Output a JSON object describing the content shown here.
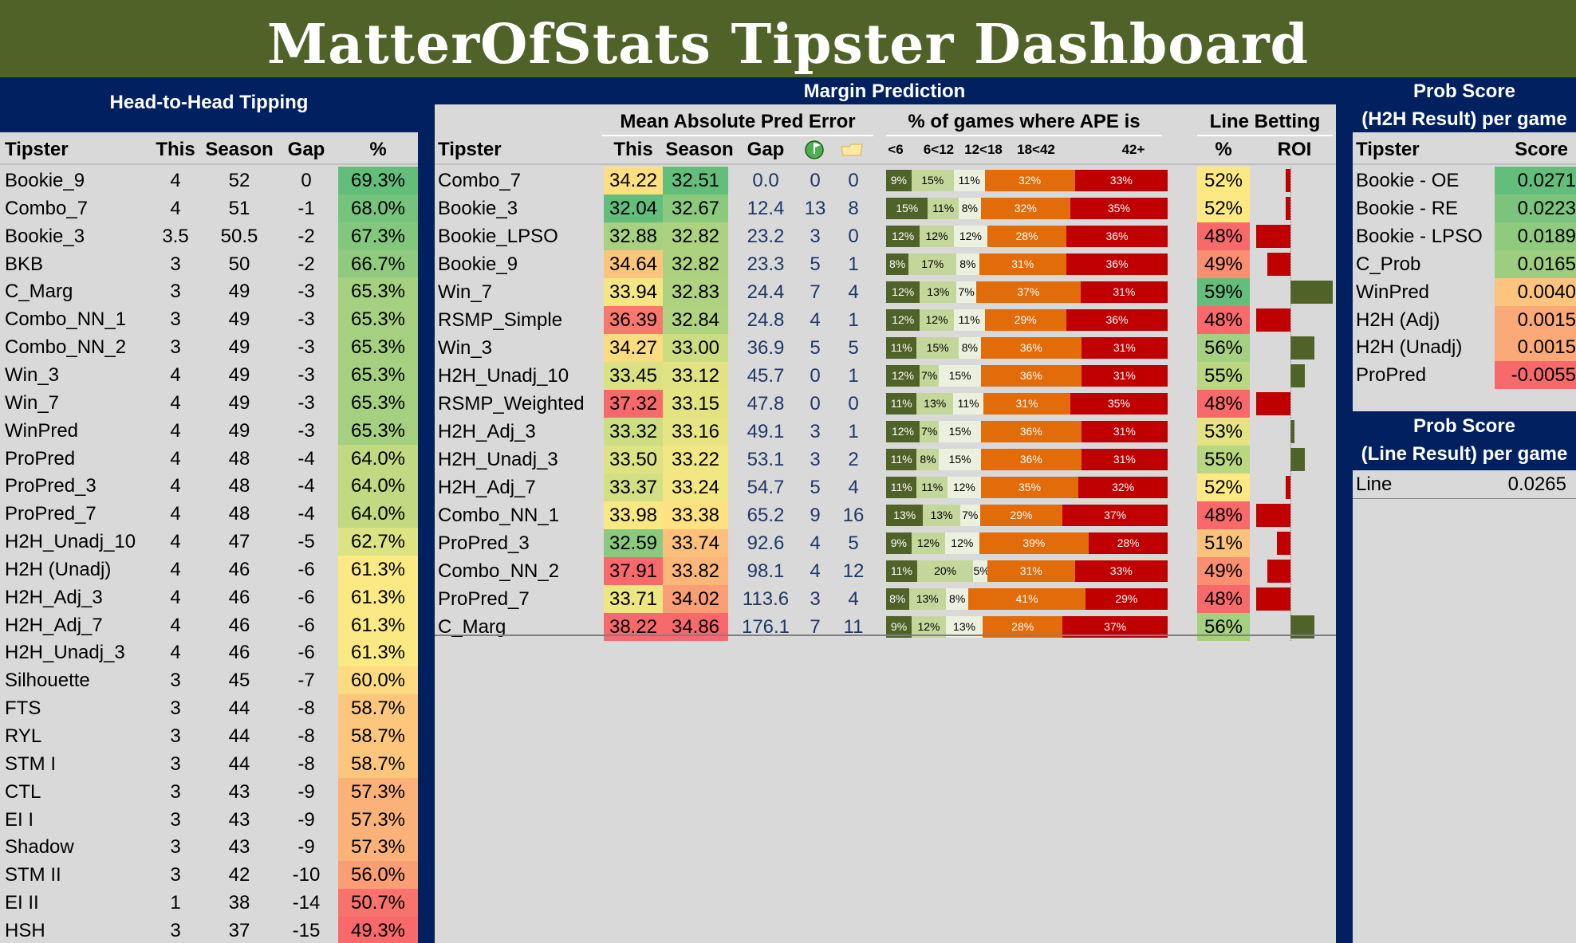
{
  "title": "MatterOfStats Tipster Dashboard",
  "h2h": {
    "section_title": "Head-to-Head Tipping",
    "columns": [
      "Tipster",
      "This",
      "Season",
      "Gap",
      "%"
    ],
    "rows": [
      {
        "tipster": "Bookie_9",
        "this": "4",
        "season": "52",
        "gap": "0",
        "pct": "69.3%",
        "color": "#63be7b"
      },
      {
        "tipster": "Combo_7",
        "this": "4",
        "season": "51",
        "gap": "-1",
        "pct": "68.0%",
        "color": "#76c37d"
      },
      {
        "tipster": "Bookie_3",
        "this": "3.5",
        "season": "50.5",
        "gap": "-2",
        "pct": "67.3%",
        "color": "#83c77d"
      },
      {
        "tipster": "BKB",
        "this": "3",
        "season": "50",
        "gap": "-2",
        "pct": "66.7%",
        "color": "#8fca7e"
      },
      {
        "tipster": "C_Marg",
        "this": "3",
        "season": "49",
        "gap": "-3",
        "pct": "65.3%",
        "color": "#a4d07f"
      },
      {
        "tipster": "Combo_NN_1",
        "this": "3",
        "season": "49",
        "gap": "-3",
        "pct": "65.3%",
        "color": "#a4d07f"
      },
      {
        "tipster": "Combo_NN_2",
        "this": "3",
        "season": "49",
        "gap": "-3",
        "pct": "65.3%",
        "color": "#a4d07f"
      },
      {
        "tipster": "Win_3",
        "this": "4",
        "season": "49",
        "gap": "-3",
        "pct": "65.3%",
        "color": "#a4d07f"
      },
      {
        "tipster": "Win_7",
        "this": "4",
        "season": "49",
        "gap": "-3",
        "pct": "65.3%",
        "color": "#a4d07f"
      },
      {
        "tipster": "WinPred",
        "this": "4",
        "season": "49",
        "gap": "-3",
        "pct": "65.3%",
        "color": "#a4d07f"
      },
      {
        "tipster": "ProPred",
        "this": "4",
        "season": "48",
        "gap": "-4",
        "pct": "64.0%",
        "color": "#c1d980"
      },
      {
        "tipster": "ProPred_3",
        "this": "4",
        "season": "48",
        "gap": "-4",
        "pct": "64.0%",
        "color": "#c1d980"
      },
      {
        "tipster": "ProPred_7",
        "this": "4",
        "season": "48",
        "gap": "-4",
        "pct": "64.0%",
        "color": "#c1d980"
      },
      {
        "tipster": "H2H_Unadj_10",
        "this": "4",
        "season": "47",
        "gap": "-5",
        "pct": "62.7%",
        "color": "#dde283"
      },
      {
        "tipster": "H2H (Unadj)",
        "this": "4",
        "season": "46",
        "gap": "-6",
        "pct": "61.3%",
        "color": "#fbe983"
      },
      {
        "tipster": "H2H_Adj_3",
        "this": "4",
        "season": "46",
        "gap": "-6",
        "pct": "61.3%",
        "color": "#fbe983"
      },
      {
        "tipster": "H2H_Adj_7",
        "this": "4",
        "season": "46",
        "gap": "-6",
        "pct": "61.3%",
        "color": "#fbe983"
      },
      {
        "tipster": "H2H_Unadj_3",
        "this": "4",
        "season": "46",
        "gap": "-6",
        "pct": "61.3%",
        "color": "#fbe983"
      },
      {
        "tipster": "Silhouette",
        "this": "3",
        "season": "45",
        "gap": "-7",
        "pct": "60.0%",
        "color": "#fddb80"
      },
      {
        "tipster": "FTS",
        "this": "3",
        "season": "44",
        "gap": "-8",
        "pct": "58.7%",
        "color": "#fcc77d"
      },
      {
        "tipster": "RYL",
        "this": "3",
        "season": "44",
        "gap": "-8",
        "pct": "58.7%",
        "color": "#fcc77d"
      },
      {
        "tipster": "STM I",
        "this": "3",
        "season": "44",
        "gap": "-8",
        "pct": "58.7%",
        "color": "#fcc77d"
      },
      {
        "tipster": "CTL",
        "this": "3",
        "season": "43",
        "gap": "-9",
        "pct": "57.3%",
        "color": "#fbb279"
      },
      {
        "tipster": "EI I",
        "this": "3",
        "season": "43",
        "gap": "-9",
        "pct": "57.3%",
        "color": "#fbb279"
      },
      {
        "tipster": "Shadow",
        "this": "3",
        "season": "43",
        "gap": "-9",
        "pct": "57.3%",
        "color": "#fbb279"
      },
      {
        "tipster": "STM II",
        "this": "3",
        "season": "42",
        "gap": "-10",
        "pct": "56.0%",
        "color": "#fa9f75"
      },
      {
        "tipster": "EI II",
        "this": "1",
        "season": "38",
        "gap": "-14",
        "pct": "50.7%",
        "color": "#f8736b"
      },
      {
        "tipster": "HSH",
        "this": "3",
        "season": "37",
        "gap": "-15",
        "pct": "49.3%",
        "color": "#f8696b"
      }
    ]
  },
  "margin": {
    "section_title": "Margin Prediction",
    "mape_title": "Mean Absolute Pred Error",
    "ape_title": "% of games where APE is",
    "line_title": "Line Betting",
    "columns": [
      "Tipster",
      "This",
      "Season",
      "Gap"
    ],
    "icon_best": "pin-flag-icon",
    "icon_worst": "folder-icon",
    "ape_labels": [
      "<6",
      "6<12",
      "12<18",
      "18<42",
      "42+"
    ],
    "line_columns": [
      "%",
      "ROI"
    ],
    "ape_colors": [
      "#4f6228",
      "#c4d79b",
      "#ebf1de",
      "#e26b0a",
      "#c00000"
    ],
    "rows": [
      {
        "tipster": "Combo_7",
        "this": "34.22",
        "this_color": "#fbdf81",
        "season": "32.51",
        "season_color": "#63be7b",
        "gap": "0.0",
        "best": "0",
        "worst": "0",
        "ape": [
          9,
          15,
          11,
          32,
          33
        ],
        "line_pct": "52%",
        "line_color": "#fde983",
        "roi": -0.006
      },
      {
        "tipster": "Bookie_3",
        "this": "32.04",
        "this_color": "#63be7b",
        "season": "32.67",
        "season_color": "#8ac97e",
        "gap": "12.4",
        "best": "13",
        "worst": "8",
        "ape": [
          15,
          11,
          8,
          32,
          35
        ],
        "line_pct": "52%",
        "line_color": "#fde983",
        "roi": -0.006
      },
      {
        "tipster": "Bookie_LPSO",
        "this": "32.88",
        "this_color": "#a7d180",
        "season": "32.82",
        "season_color": "#acd27f",
        "gap": "23.2",
        "best": "3",
        "worst": "0",
        "ape": [
          12,
          12,
          12,
          28,
          36
        ],
        "line_pct": "48%",
        "line_color": "#f8696b",
        "roi": -0.045
      },
      {
        "tipster": "Bookie_9",
        "this": "34.64",
        "this_color": "#fcc57d",
        "season": "32.82",
        "season_color": "#acd27f",
        "gap": "23.3",
        "best": "5",
        "worst": "1",
        "ape": [
          8,
          17,
          8,
          31,
          36
        ],
        "line_pct": "49%",
        "line_color": "#f98e71",
        "roi": -0.03
      },
      {
        "tipster": "Win_7",
        "this": "33.94",
        "this_color": "#f4e783",
        "season": "32.83",
        "season_color": "#aed280",
        "gap": "24.4",
        "best": "7",
        "worst": "4",
        "ape": [
          12,
          13,
          7,
          37,
          31
        ],
        "line_pct": "59%",
        "line_color": "#63be7b",
        "roi": 0.056
      },
      {
        "tipster": "RSMP_Simple",
        "this": "36.39",
        "this_color": "#f8786d",
        "season": "32.84",
        "season_color": "#b0d380",
        "gap": "24.8",
        "best": "4",
        "worst": "1",
        "ape": [
          12,
          12,
          11,
          29,
          36
        ],
        "line_pct": "48%",
        "line_color": "#f8696b",
        "roi": -0.045
      },
      {
        "tipster": "Win_3",
        "this": "34.27",
        "this_color": "#fbdc81",
        "season": "33.00",
        "season_color": "#cbdc81",
        "gap": "36.9",
        "best": "5",
        "worst": "5",
        "ape": [
          11,
          15,
          8,
          36,
          31
        ],
        "line_pct": "56%",
        "line_color": "#a4d17f",
        "roi": 0.032
      },
      {
        "tipster": "H2H_Unadj_10",
        "this": "33.45",
        "this_color": "#d9e182",
        "season": "33.12",
        "season_color": "#e0e283",
        "gap": "45.7",
        "best": "0",
        "worst": "1",
        "ape": [
          12,
          7,
          15,
          36,
          31
        ],
        "line_pct": "55%",
        "line_color": "#b9d780",
        "roi": 0.019
      },
      {
        "tipster": "RSMP_Weighted",
        "this": "37.32",
        "this_color": "#f8696b",
        "season": "33.15",
        "season_color": "#e4e382",
        "gap": "47.8",
        "best": "0",
        "worst": "0",
        "ape": [
          11,
          13,
          11,
          31,
          35
        ],
        "line_pct": "48%",
        "line_color": "#f8696b",
        "roi": -0.045
      },
      {
        "tipster": "H2H_Adj_3",
        "this": "33.32",
        "this_color": "#cddd82",
        "season": "33.16",
        "season_color": "#e6e483",
        "gap": "49.1",
        "best": "3",
        "worst": "1",
        "ape": [
          12,
          7,
          15,
          36,
          31
        ],
        "line_pct": "53%",
        "line_color": "#e3e383",
        "roi": 0.006
      },
      {
        "tipster": "H2H_Unadj_3",
        "this": "33.50",
        "this_color": "#dde283",
        "season": "33.22",
        "season_color": "#f0e683",
        "gap": "53.1",
        "best": "3",
        "worst": "2",
        "ape": [
          11,
          8,
          15,
          36,
          31
        ],
        "line_pct": "55%",
        "line_color": "#b9d780",
        "roi": 0.019
      },
      {
        "tipster": "H2H_Adj_7",
        "this": "33.37",
        "this_color": "#d2df82",
        "season": "33.24",
        "season_color": "#f3e783",
        "gap": "54.7",
        "best": "5",
        "worst": "4",
        "ape": [
          11,
          11,
          12,
          35,
          32
        ],
        "line_pct": "52%",
        "line_color": "#fde983",
        "roi": -0.006
      },
      {
        "tipster": "Combo_NN_1",
        "this": "33.98",
        "this_color": "#f8e883",
        "season": "33.38",
        "season_color": "#fee282",
        "gap": "65.2",
        "best": "9",
        "worst": "16",
        "ape": [
          13,
          13,
          7,
          29,
          37
        ],
        "line_pct": "48%",
        "line_color": "#f8696b",
        "roi": -0.045
      },
      {
        "tipster": "ProPred_3",
        "this": "32.59",
        "this_color": "#8bc97e",
        "season": "33.74",
        "season_color": "#fcc07c",
        "gap": "92.6",
        "best": "4",
        "worst": "5",
        "ape": [
          9,
          12,
          12,
          39,
          28
        ],
        "line_pct": "51%",
        "line_color": "#fbc27c",
        "roi": -0.018
      },
      {
        "tipster": "Combo_NN_2",
        "this": "37.91",
        "this_color": "#f8696b",
        "season": "33.82",
        "season_color": "#fbb67a",
        "gap": "98.1",
        "best": "4",
        "worst": "12",
        "ape": [
          11,
          20,
          5,
          31,
          33
        ],
        "line_pct": "49%",
        "line_color": "#f98e71",
        "roi": -0.03
      },
      {
        "tipster": "ProPred_7",
        "this": "33.71",
        "this_color": "#eee683",
        "season": "34.02",
        "season_color": "#fa9e75",
        "gap": "113.6",
        "best": "3",
        "worst": "4",
        "ape": [
          8,
          13,
          8,
          41,
          29
        ],
        "line_pct": "48%",
        "line_color": "#f8696b",
        "roi": -0.045
      },
      {
        "tipster": "C_Marg",
        "this": "38.22",
        "this_color": "#f8696b",
        "season": "34.86",
        "season_color": "#f8696b",
        "gap": "176.1",
        "best": "7",
        "worst": "11",
        "ape": [
          9,
          12,
          13,
          28,
          37
        ],
        "line_pct": "56%",
        "line_color": "#a4d17f",
        "roi": 0.032
      }
    ]
  },
  "prob_h2h": {
    "title_line1": "Prob Score",
    "title_line2": "(H2H Result) per game",
    "columns": [
      "Tipster",
      "Score"
    ],
    "rows": [
      {
        "tipster": "Bookie - OE",
        "score": "0.0271",
        "color": "#63be7b"
      },
      {
        "tipster": "Bookie - RE",
        "score": "0.0223",
        "color": "#7cc47d"
      },
      {
        "tipster": "Bookie - LPSO",
        "score": "0.0189",
        "color": "#8fca7e"
      },
      {
        "tipster": "C_Prob",
        "score": "0.0165",
        "color": "#9dcd7f"
      },
      {
        "tipster": "WinPred",
        "score": "0.0040",
        "color": "#fcc47d"
      },
      {
        "tipster": "H2H (Adj)",
        "score": "0.0015",
        "color": "#fbaa77"
      },
      {
        "tipster": "H2H (Unadj)",
        "score": "0.0015",
        "color": "#fbaa77"
      },
      {
        "tipster": "ProPred",
        "score": "-0.0055",
        "color": "#f8696b"
      }
    ]
  },
  "prob_line": {
    "title_line1": "Prob Score",
    "title_line2": "(Line Result) per game",
    "rows": [
      {
        "tipster": "Line",
        "score": "0.0265"
      }
    ]
  },
  "chart_data": [
    {
      "type": "table",
      "title": "Head-to-Head Tipping",
      "columns": [
        "Tipster",
        "This",
        "Season",
        "Gap",
        "%"
      ]
    },
    {
      "type": "bar",
      "stacked": true,
      "title": "% of games where APE is",
      "series_names": [
        "<6",
        "6<12",
        "12<18",
        "18<42",
        "42+"
      ],
      "categories": [
        "Combo_7",
        "Bookie_3",
        "Bookie_LPSO",
        "Bookie_9",
        "Win_7",
        "RSMP_Simple",
        "Win_3",
        "H2H_Unadj_10",
        "RSMP_Weighted",
        "H2H_Adj_3",
        "H2H_Unadj_3",
        "H2H_Adj_7",
        "Combo_NN_1",
        "ProPred_3",
        "Combo_NN_2",
        "ProPred_7",
        "C_Marg"
      ],
      "values_in": "margin.rows[].ape (percent)"
    },
    {
      "type": "bar",
      "title": "Line Betting ROI",
      "categories": [
        "Combo_7",
        "Bookie_3",
        "Bookie_LPSO",
        "Bookie_9",
        "Win_7",
        "RSMP_Simple",
        "Win_3",
        "H2H_Unadj_10",
        "RSMP_Weighted",
        "H2H_Adj_3",
        "H2H_Unadj_3",
        "H2H_Adj_7",
        "Combo_NN_1",
        "ProPred_3",
        "Combo_NN_2",
        "ProPred_7",
        "C_Marg"
      ],
      "values": [
        -0.006,
        -0.006,
        -0.045,
        -0.03,
        0.056,
        -0.045,
        0.032,
        0.019,
        -0.045,
        0.006,
        0.019,
        -0.006,
        -0.045,
        -0.018,
        -0.03,
        -0.045,
        0.032
      ],
      "ylim": [
        -0.045,
        0.056
      ]
    }
  ]
}
